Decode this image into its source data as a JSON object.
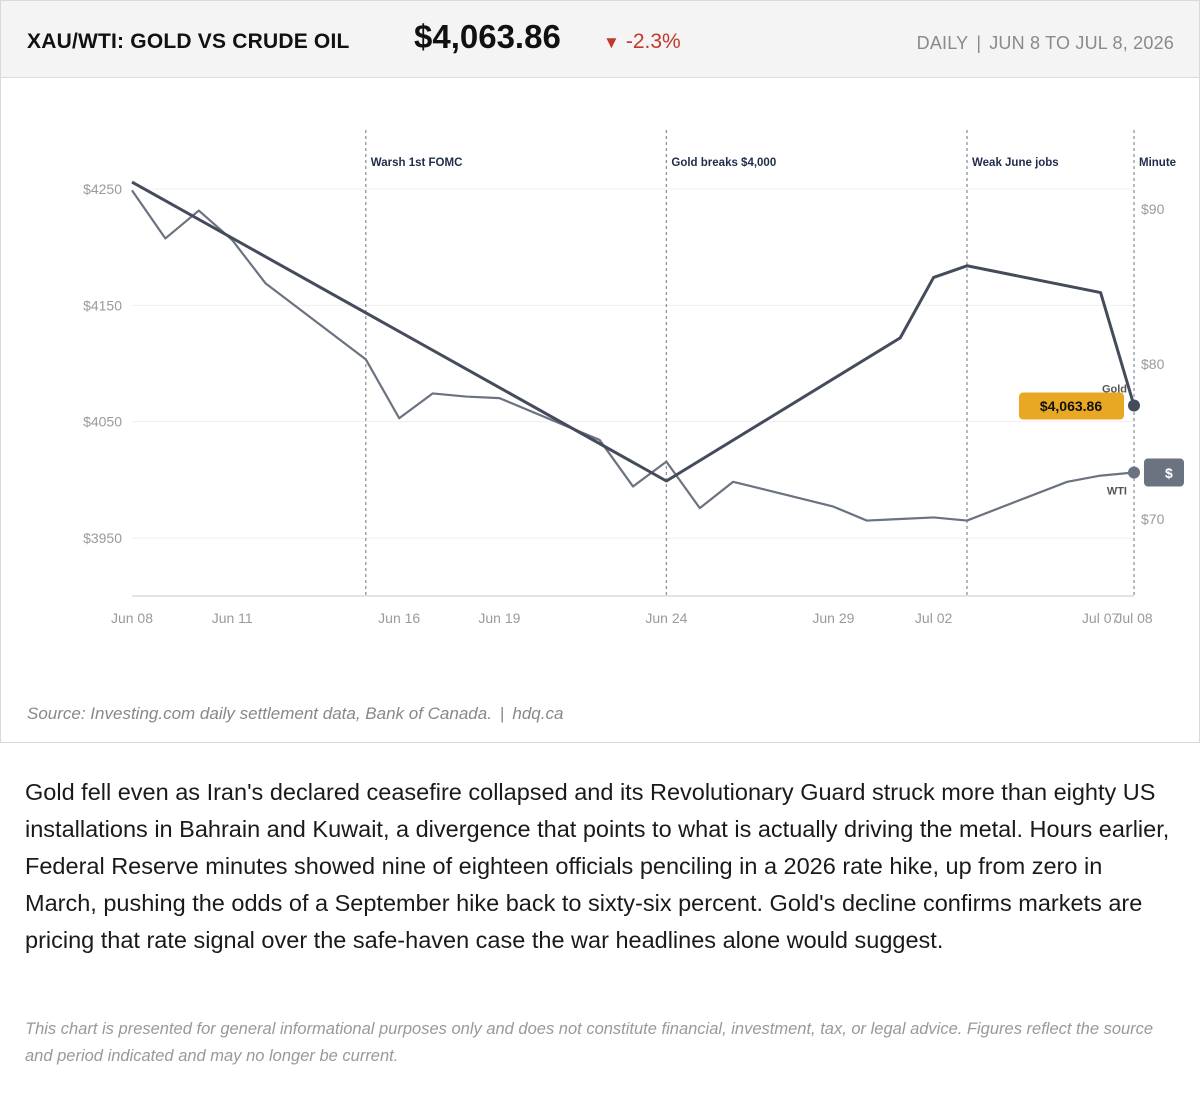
{
  "header": {
    "title": "XAU/WTI: GOLD VS CRUDE OIL",
    "price": "$4,063.86",
    "change_arrow": "▼",
    "change": "-2.3%",
    "frequency": "DAILY",
    "separator": "|",
    "date_range": "JUN 8 TO JUL 8, 2026",
    "change_color": "#c0392b"
  },
  "chart_data": {
    "type": "line",
    "x": [
      "2026-06-08",
      "2026-06-09",
      "2026-06-10",
      "2026-06-11",
      "2026-06-12",
      "2026-06-15",
      "2026-06-16",
      "2026-06-17",
      "2026-06-18",
      "2026-06-19",
      "2026-06-22",
      "2026-06-23",
      "2026-06-24",
      "2026-06-25",
      "2026-06-26",
      "2026-06-29",
      "2026-06-30",
      "2026-07-01",
      "2026-07-02",
      "2026-07-03",
      "2026-07-06",
      "2026-07-07",
      "2026-07-08"
    ],
    "x_tick_labels": [
      "Jun 08",
      "Jun 11",
      "Jun 16",
      "Jun 19",
      "Jun 24",
      "Jun 29",
      "Jul 02",
      "Jul 07",
      "Jul 08"
    ],
    "x_tick_dates": [
      "2026-06-08",
      "2026-06-11",
      "2026-06-16",
      "2026-06-19",
      "2026-06-24",
      "2026-06-29",
      "2026-07-02",
      "2026-07-07",
      "2026-07-08"
    ],
    "series": [
      {
        "name": "Gold",
        "axis": "left",
        "color": "#444c5c",
        "points": [
          {
            "x": "2026-06-08",
            "y": 4256
          },
          {
            "x": "2026-06-24",
            "y": 3999
          },
          {
            "x": "2026-07-01",
            "y": 4122
          },
          {
            "x": "2026-07-02",
            "y": 4174
          },
          {
            "x": "2026-07-03",
            "y": 4184
          },
          {
            "x": "2026-07-07",
            "y": 4161
          },
          {
            "x": "2026-07-08",
            "y": 4063.86
          }
        ],
        "end_label": "Gold",
        "end_value": "$4,063.86",
        "tag_color": "#e8a824"
      },
      {
        "name": "WTI",
        "axis": "right",
        "color": "#6b7280",
        "points": [
          {
            "x": "2026-06-08",
            "y": 91.2
          },
          {
            "x": "2026-06-09",
            "y": 88.1
          },
          {
            "x": "2026-06-10",
            "y": 89.9
          },
          {
            "x": "2026-06-11",
            "y": 88.0
          },
          {
            "x": "2026-06-12",
            "y": 85.2
          },
          {
            "x": "2026-06-15",
            "y": 80.3
          },
          {
            "x": "2026-06-16",
            "y": 76.5
          },
          {
            "x": "2026-06-17",
            "y": 78.1
          },
          {
            "x": "2026-06-18",
            "y": 77.9
          },
          {
            "x": "2026-06-19",
            "y": 77.8
          },
          {
            "x": "2026-06-22",
            "y": 75.1
          },
          {
            "x": "2026-06-23",
            "y": 72.1
          },
          {
            "x": "2026-06-24",
            "y": 73.7
          },
          {
            "x": "2026-06-25",
            "y": 70.7
          },
          {
            "x": "2026-06-26",
            "y": 72.4
          },
          {
            "x": "2026-06-29",
            "y": 70.8
          },
          {
            "x": "2026-06-30",
            "y": 69.9
          },
          {
            "x": "2026-07-01",
            "y": 70.0
          },
          {
            "x": "2026-07-02",
            "y": 70.1
          },
          {
            "x": "2026-07-03",
            "y": 69.9
          },
          {
            "x": "2026-07-06",
            "y": 72.4
          },
          {
            "x": "2026-07-07",
            "y": 72.8
          },
          {
            "x": "2026-07-08",
            "y": 73.0
          }
        ],
        "end_label": "WTI",
        "end_value": "$",
        "tag_color": "#6b7280"
      }
    ],
    "y_left": {
      "ticks": [
        3950,
        4050,
        4150,
        4250
      ],
      "tick_labels": [
        "$3950",
        "$4050",
        "$4150",
        "$4250"
      ],
      "range": [
        3900,
        4300
      ]
    },
    "y_right": {
      "ticks": [
        70,
        80,
        90
      ],
      "tick_labels": [
        "$70",
        "$80",
        "$90"
      ],
      "range": [
        60,
        95
      ]
    },
    "annotations": [
      {
        "x": "2026-06-15",
        "label": "Warsh 1st FOMC"
      },
      {
        "x": "2026-06-24",
        "label": "Gold breaks $4,000"
      },
      {
        "x": "2026-07-03",
        "label": "Weak June jobs"
      },
      {
        "x": "2026-07-08",
        "label": "Minute"
      }
    ],
    "grid": true,
    "legend": "none"
  },
  "source": {
    "text": "Source: Investing.com daily settlement data, Bank of Canada.",
    "separator": "|",
    "site": "hdq.ca"
  },
  "body_text": "Gold fell even as Iran's declared ceasefire collapsed and its Revolutionary Guard struck more than eighty US installations in Bahrain and Kuwait, a divergence that points to what is actually driving the metal. Hours earlier, Federal Reserve minutes showed nine of eighteen officials penciling in a 2026 rate hike, up from zero in March, pushing the odds of a September hike back to sixty-six percent. Gold's decline confirms markets are pricing that rate signal over the safe-haven case the war headlines alone would suggest.",
  "disclaimer": "This chart is presented for general informational purposes only and does not constitute financial, investment, tax, or legal advice. Figures reflect the source and period indicated and may no longer be current."
}
